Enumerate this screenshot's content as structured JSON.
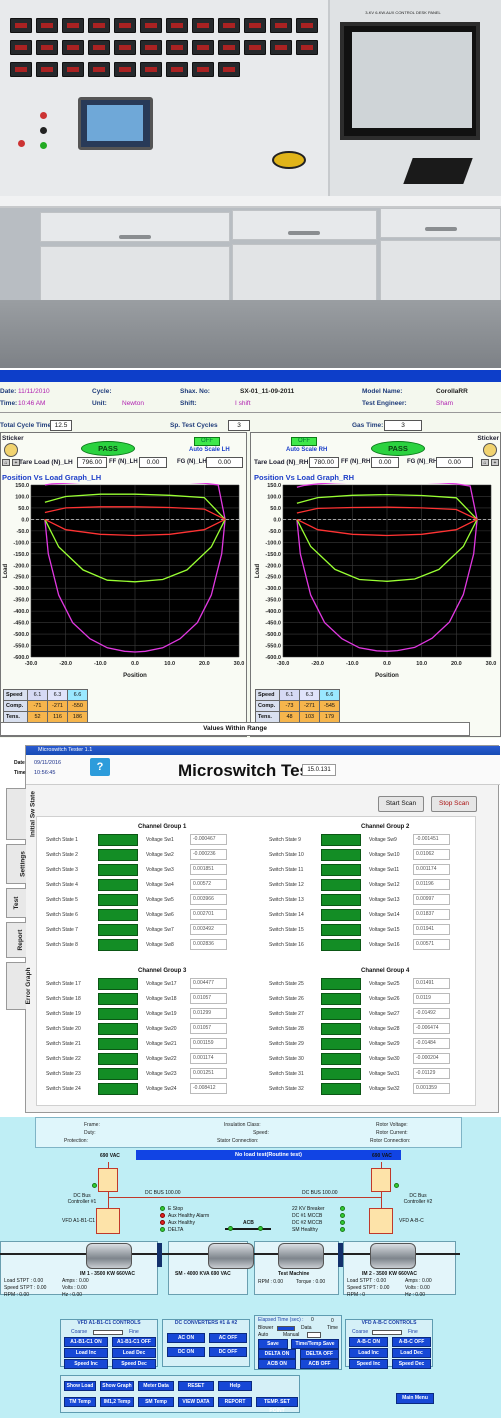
{
  "panel1": {
    "placard_text": "3-KV 6-KW.AUX CONTROL DESK PANEL"
  },
  "panel2": {
    "header": {
      "date_label": "Date:",
      "date_value": "11/11/2010",
      "time_label": "Time:",
      "time_value": "10:46 AM",
      "cycle_label": "Cycle:",
      "unit_label": "Unit:",
      "unit_value": "Newton",
      "shax_label": "Shax. No:",
      "shax_value": "SX-01_11-09-2011",
      "shift_label": "Shift:",
      "shift_value": "I shift",
      "model_label": "Model Name:",
      "model_value": "CorollaRR",
      "engineer_label": "Test Engineer:",
      "engineer_value": "Sham"
    },
    "cycles": {
      "total_label": "Total Cycle Time:",
      "total_value": "12.5",
      "sp_label": "Sp. Test Cycles",
      "sp_value": "3",
      "gas_label": "Gas Time:",
      "gas_value": "3"
    },
    "left": {
      "sticker_label": "Sticker",
      "status": "PASS",
      "toggle": "OFF",
      "autoscale_label": "Auto Scale LH",
      "tare_label": "Tare Load (N)_LH",
      "tare_value": "796.00",
      "ff_label": "FF (N)_LH",
      "ff_value": "0.00",
      "fg_label": "FG (N)_LH",
      "fg_value": "0.00",
      "graph_title": "Position Vs Load Graph_LH",
      "x_axis_label": "Position",
      "y_axis_label": "Load",
      "table": {
        "headers": [
          "6.1",
          "6.3",
          "6.6"
        ],
        "rows": [
          {
            "label": "Speed",
            "values": [
              "",
              "",
              ""
            ]
          },
          {
            "label": "Comp.",
            "values": [
              "-71",
              "-271",
              "-550"
            ]
          },
          {
            "label": "Tens.",
            "values": [
              "52",
              "116",
              "186"
            ]
          }
        ]
      }
    },
    "right": {
      "sticker_label": "Sticker",
      "status": "PASS",
      "toggle": "OFF",
      "autoscale_label": "Auto Scale RH",
      "tare_label": "Tare Load (N)_RH",
      "tare_value": "780.00",
      "ff_label": "FF (N)_RH",
      "ff_value": "0.00",
      "fg_label": "FG (N)_RH",
      "fg_value": "0.00",
      "graph_title": "Position Vs Load Graph_RH",
      "x_axis_label": "Position",
      "y_axis_label": "Load",
      "table": {
        "headers": [
          "6.1",
          "6.3",
          "6.6"
        ],
        "rows": [
          {
            "label": "Speed",
            "values": [
              "",
              "",
              ""
            ]
          },
          {
            "label": "Comp.",
            "values": [
              "-73",
              "-271",
              "-545"
            ]
          },
          {
            "label": "Tens.",
            "values": [
              "48",
              "103",
              "179"
            ]
          }
        ]
      }
    },
    "footer_message": "Values Within Range",
    "colors": {
      "plot_bg": "#000000",
      "grid": "#3b3b3b",
      "title": "#1d3ec8",
      "pass": "#2bd23f"
    }
  },
  "panel3": {
    "window_title": "Microswitch Tester 1.1",
    "date_label": "Date",
    "date_value": "09/11/2016",
    "time_label": "Time",
    "time_value": "10:56:45",
    "title": "Microswitch Tester",
    "version": "15.0.131",
    "start_scan": "Start Scan",
    "stop_scan": "Stop Scan",
    "tabs": [
      "Initial Sw State",
      "Settings",
      "Test",
      "Report",
      "Error Graph"
    ],
    "groups": [
      {
        "title": "Channel Group 1",
        "switches": [
          "Switch State 1",
          "Switch State 2",
          "Switch State 3",
          "Switch State 4",
          "Switch State 5",
          "Switch State 6",
          "Switch State 7",
          "Switch State 8"
        ],
        "voltage_labels": [
          "Voltage Sw1",
          "Voltage Sw2",
          "Voltage Sw3",
          "Voltage Sw4",
          "Voltage Sw5",
          "Voltage Sw6",
          "Voltage Sw7",
          "Voltage Sw8"
        ],
        "voltages": [
          "-0.000467",
          "-0.000236",
          "0.001851",
          "0.00572",
          "0.003966",
          "0.002701",
          "0.003492",
          "0.002836"
        ]
      },
      {
        "title": "Channel Group 2",
        "switches": [
          "Switch State 9",
          "Switch State 10",
          "Switch State 11",
          "Switch State 12",
          "Switch State 13",
          "Switch State 14",
          "Switch State 15",
          "Switch State 16"
        ],
        "voltage_labels": [
          "Voltage Sw9",
          "Voltage Sw10",
          "Voltage Sw11",
          "Voltage Sw12",
          "Voltage Sw13",
          "Voltage Sw14",
          "Voltage Sw15",
          "Voltage Sw16"
        ],
        "voltages": [
          "-0.001451",
          "0.01062",
          "0.001174",
          "0.01196",
          "0.00997",
          "0.01837",
          "0.01941",
          "0.00571"
        ]
      },
      {
        "title": "Channel Group 3",
        "switches": [
          "Switch State 17",
          "Switch State 18",
          "Switch State 19",
          "Switch State 20",
          "Switch State 21",
          "Switch State 22",
          "Switch State 23",
          "Switch State 24"
        ],
        "voltage_labels": [
          "Voltage Sw17",
          "Voltage Sw18",
          "Voltage Sw19",
          "Voltage Sw20",
          "Voltage Sw21",
          "Voltage Sw22",
          "Voltage Sw23",
          "Voltage Sw24"
        ],
        "voltages": [
          "0.004477",
          "0.01057",
          "0.01299",
          "0.01057",
          "0.001159",
          "0.001174",
          "0.001251",
          "-0.008412"
        ]
      },
      {
        "title": "Channel Group 4",
        "switches": [
          "Switch State 25",
          "Switch State 26",
          "Switch State 27",
          "Switch State 28",
          "Switch State 29",
          "Switch State 30",
          "Switch State 31",
          "Switch State 32"
        ],
        "voltage_labels": [
          "Voltage Sw25",
          "Voltage Sw26",
          "Voltage Sw27",
          "Voltage Sw28",
          "Voltage Sw29",
          "Voltage Sw30",
          "Voltage Sw31",
          "Voltage Sw32"
        ],
        "voltages": [
          "0.01491",
          "0.0119",
          "-0.01492",
          "-0.006474",
          "-0.01484",
          "-0.000204",
          "-0.01129",
          "0.001359"
        ]
      }
    ],
    "colors": {
      "switch_on": "#138d25"
    }
  },
  "panel4": {
    "top_info": {
      "frame": "Frame:",
      "duty": "Duty:",
      "protection": "Protection:",
      "insulation": "Insulation Class:",
      "speed": "Speed:",
      "stator": "Stator Connection:",
      "rotor_voltage": "Rotor Voltage:",
      "rotor_current": "Rotor Current:",
      "rotor_connection": "Rotor Connection:"
    },
    "status_banner": "No load test(Routine test)",
    "left_supply": "690 VAC",
    "right_supply": "690 VAC",
    "dc_bus_left": "DC Bus Controller #1",
    "dc_bus_right": "DC Bus Controller #2",
    "dc_bus_text_left": "DC BUS 100.00",
    "dc_bus_text_right": "DC BUS 100.00",
    "vfd_left": "VFD A1-B1-C1",
    "vfd_right": "VFD A-B-C",
    "indicators_left": [
      "E Stop",
      "Aux Healthy Alarm",
      "Aux Healthy",
      "DELTA"
    ],
    "indicators_right": [
      "22 KV Breaker",
      "DC #1 MCCB",
      "DC #2 MCCB",
      "SM Healthy"
    ],
    "acb_label": "ACB",
    "machines": [
      {
        "name": "IM 1 - 3500 KW 660VAC",
        "fields": [
          "Load STPT : 0.00",
          "Amps : 0.00",
          "Speed STPT : 0.00",
          "Volts : 0.00",
          "RPM : 0.00",
          "Hz : 0.00"
        ]
      },
      {
        "name": "SM - 4000 KVA 690 VAC",
        "fields": []
      },
      {
        "name": "Test Machine",
        "fields": [
          "RPM : 0.00",
          "Torque : 0.00"
        ]
      },
      {
        "name": "IM 2 - 3500 KW 660VAC",
        "fields": [
          "Load STPT : 0.00",
          "Amps : 0.00",
          "Speed STPT : 0.00",
          "Volts : 0.00",
          "RPM : 0",
          "Hz : 0.00"
        ]
      }
    ],
    "ctl_left": {
      "title": "VFD A1-B1-C1 CONTROLS",
      "coarse": "Coarse",
      "fine": "Fine",
      "buttons": [
        "A1-B1-C1 ON",
        "A1-B1-C1 OFF",
        "Load Inc",
        "Load Dec",
        "Speed Inc",
        "Speed Dec"
      ]
    },
    "ctl_mid": {
      "title": "DC CONVERTERS #1 & #2",
      "buttons": [
        "AC ON",
        "AC OFF",
        "DC ON",
        "DC OFF"
      ]
    },
    "ctl_time": {
      "title": "Elapsed Time (sec) :",
      "value": "0",
      "data_value": "0",
      "blower": "Blower",
      "auto": "Auto",
      "manual": "Manual",
      "data": "Data",
      "time": "Time",
      "buttons": [
        "Save",
        "Time/Temp Save",
        "DELTA ON",
        "DELTA OFF",
        "ACB ON",
        "ACB OFF"
      ]
    },
    "ctl_right": {
      "title": "VFD A-B-C CONTROLS",
      "coarse": "Coarse",
      "fine": "Fine",
      "buttons": [
        "A-B-C ON",
        "A-B-C OFF",
        "Load Inc",
        "Load Dec",
        "Speed Inc",
        "Speed Dec"
      ]
    },
    "nav_buttons_row1": [
      "Show Load",
      "Show Graph",
      "Meter Data",
      "RESET",
      "Help"
    ],
    "nav_buttons_row2": [
      "TM Temp",
      "IM1,2 Temp",
      "SM Temp",
      "VIEW DATA",
      "REPORT",
      "TEMP. SET POINT"
    ],
    "main_menu": "Main Menu"
  },
  "chart_data": [
    {
      "type": "line",
      "title": "Position Vs Load Graph_LH",
      "xlabel": "Position",
      "ylabel": "Load",
      "xlim": [
        -30,
        30
      ],
      "ylim": [
        -600,
        150
      ],
      "xticks": [
        -30,
        -20,
        -10,
        0,
        10,
        20,
        30
      ],
      "yticks": [
        150,
        100,
        50,
        0,
        -50,
        -100,
        -150,
        -200,
        -250,
        -300,
        -350,
        -400,
        -450,
        -500,
        -550,
        -600
      ],
      "series": [
        {
          "color": "#e038e0",
          "x": [
            -26,
            -24,
            -20,
            -15,
            -10,
            -5,
            0,
            5,
            10,
            15,
            20,
            24,
            26
          ],
          "y": [
            150,
            155,
            158,
            162,
            164,
            165,
            165,
            165,
            164,
            162,
            158,
            150,
            0
          ]
        },
        {
          "color": "#e038e0",
          "x": [
            -26,
            -25,
            -22,
            -18,
            -13,
            -8,
            -3,
            0,
            3,
            8,
            13,
            18,
            22,
            25,
            26
          ],
          "y": [
            0,
            -150,
            -330,
            -450,
            -520,
            -560,
            -575,
            -578,
            -575,
            -560,
            -520,
            -450,
            -330,
            -150,
            0
          ]
        },
        {
          "color": "#99ff33",
          "x": [
            -26,
            -20,
            -10,
            0,
            10,
            20,
            26
          ],
          "y": [
            75,
            100,
            110,
            110,
            105,
            95,
            0
          ]
        },
        {
          "color": "#99ff33",
          "x": [
            -26,
            -22,
            -15,
            -8,
            0,
            8,
            15,
            22,
            26
          ],
          "y": [
            0,
            -120,
            -220,
            -265,
            -272,
            -262,
            -220,
            -120,
            0
          ]
        },
        {
          "color": "#ff3333",
          "x": [
            -26,
            -20,
            -10,
            0,
            10,
            20,
            26
          ],
          "y": [
            30,
            50,
            55,
            55,
            52,
            45,
            0
          ]
        },
        {
          "color": "#ff3333",
          "x": [
            -26,
            -20,
            -10,
            0,
            10,
            20,
            26
          ],
          "y": [
            0,
            -45,
            -65,
            -70,
            -65,
            -45,
            0
          ]
        }
      ]
    },
    {
      "type": "line",
      "title": "Position Vs Load Graph_RH",
      "xlabel": "Position",
      "ylabel": "Load",
      "xlim": [
        -30,
        30
      ],
      "ylim": [
        -600,
        150
      ],
      "xticks": [
        -30,
        -20,
        -10,
        0,
        10,
        20,
        30
      ],
      "yticks": [
        150,
        100,
        50,
        0,
        -50,
        -100,
        -150,
        -200,
        -250,
        -300,
        -350,
        -400,
        -450,
        -500,
        -550,
        -600
      ],
      "series": [
        {
          "color": "#e038e0",
          "x": [
            -26,
            -24,
            -20,
            -15,
            -10,
            -5,
            0,
            5,
            10,
            15,
            20,
            24,
            26
          ],
          "y": [
            140,
            148,
            155,
            160,
            162,
            163,
            163,
            163,
            162,
            160,
            155,
            145,
            0
          ]
        },
        {
          "color": "#e038e0",
          "x": [
            -26,
            -25,
            -22,
            -18,
            -13,
            -8,
            -3,
            0,
            3,
            8,
            13,
            18,
            22,
            25,
            26
          ],
          "y": [
            0,
            -150,
            -330,
            -450,
            -520,
            -560,
            -573,
            -575,
            -572,
            -558,
            -518,
            -448,
            -328,
            -150,
            0
          ]
        },
        {
          "color": "#99ff33",
          "x": [
            -26,
            -20,
            -10,
            0,
            10,
            20,
            26
          ],
          "y": [
            70,
            95,
            105,
            108,
            104,
            94,
            0
          ]
        },
        {
          "color": "#99ff33",
          "x": [
            -26,
            -22,
            -15,
            -8,
            0,
            8,
            15,
            22,
            26
          ],
          "y": [
            0,
            -118,
            -218,
            -262,
            -270,
            -260,
            -218,
            -118,
            0
          ]
        },
        {
          "color": "#ff3333",
          "x": [
            -26,
            -20,
            -10,
            0,
            10,
            20,
            26
          ],
          "y": [
            28,
            48,
            52,
            53,
            50,
            43,
            0
          ]
        },
        {
          "color": "#ff3333",
          "x": [
            -26,
            -20,
            -10,
            0,
            10,
            20,
            26
          ],
          "y": [
            0,
            -45,
            -65,
            -70,
            -65,
            -45,
            0
          ]
        }
      ]
    }
  ]
}
